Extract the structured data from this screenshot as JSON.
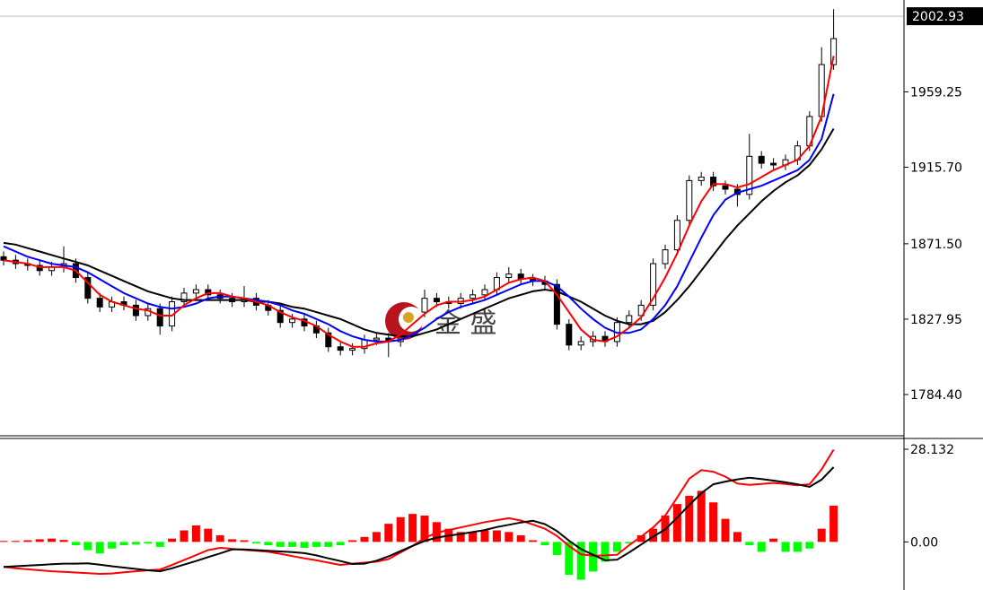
{
  "chart_data": [
    {
      "type": "candlestick",
      "ylim": [
        1761.1,
        2012.3
      ],
      "yticks": [
        {
          "value": 1784.4,
          "label": "1784.40"
        },
        1827.95,
        {
          "value": 1871.5,
          "label": "1871.50"
        },
        {
          "value": 1915.7,
          "label": "1915.70"
        },
        1959.25
      ],
      "current_price": 2002.93,
      "up_color": "#ffffff",
      "down_color": "#000000",
      "watermark": "金 盛",
      "candles": [
        [
          1864,
          1867,
          1859,
          1862
        ],
        [
          1862,
          1865,
          1857,
          1860
        ],
        [
          1860,
          1863,
          1856,
          1859
        ],
        [
          1859,
          1862,
          1853,
          1856
        ],
        [
          1856,
          1861,
          1853,
          1858
        ],
        [
          1858,
          1870,
          1855,
          1860
        ],
        [
          1860,
          1863,
          1849,
          1852
        ],
        [
          1852,
          1855,
          1837,
          1840
        ],
        [
          1840,
          1843,
          1832,
          1835
        ],
        [
          1835,
          1841,
          1832,
          1838
        ],
        [
          1838,
          1841,
          1833,
          1836
        ],
        [
          1836,
          1839,
          1827,
          1830
        ],
        [
          1830,
          1837,
          1827,
          1834
        ],
        [
          1834,
          1837,
          1819,
          1824
        ],
        [
          1824,
          1841,
          1821,
          1838
        ],
        [
          1838,
          1846,
          1835,
          1843
        ],
        [
          1843,
          1848,
          1840,
          1845
        ],
        [
          1845,
          1848,
          1839,
          1842
        ],
        [
          1842,
          1845,
          1837,
          1840
        ],
        [
          1840,
          1843,
          1835,
          1838
        ],
        [
          1838,
          1847,
          1835,
          1840
        ],
        [
          1840,
          1843,
          1833,
          1836
        ],
        [
          1836,
          1839,
          1830,
          1833
        ],
        [
          1833,
          1836,
          1823,
          1826
        ],
        [
          1826,
          1831,
          1823,
          1828
        ],
        [
          1828,
          1831,
          1821,
          1824
        ],
        [
          1824,
          1827,
          1817,
          1820
        ],
        [
          1820,
          1823,
          1809,
          1812
        ],
        [
          1812,
          1815,
          1807,
          1810
        ],
        [
          1810,
          1814,
          1807,
          1811
        ],
        [
          1811,
          1819,
          1808,
          1816
        ],
        [
          1816,
          1820,
          1813,
          1817
        ],
        [
          1817,
          1820,
          1806,
          1815
        ],
        [
          1815,
          1829,
          1812,
          1826
        ],
        [
          1826,
          1835,
          1823,
          1832
        ],
        [
          1832,
          1845,
          1829,
          1840
        ],
        [
          1840,
          1843,
          1835,
          1838
        ],
        [
          1838,
          1841,
          1834,
          1837
        ],
        [
          1837,
          1843,
          1834,
          1840
        ],
        [
          1840,
          1845,
          1837,
          1842
        ],
        [
          1842,
          1848,
          1839,
          1845
        ],
        [
          1845,
          1855,
          1842,
          1852
        ],
        [
          1852,
          1858,
          1849,
          1854
        ],
        [
          1854,
          1857,
          1848,
          1851
        ],
        [
          1851,
          1854,
          1847,
          1850
        ],
        [
          1850,
          1853,
          1845,
          1848
        ],
        [
          1848,
          1851,
          1822,
          1825
        ],
        [
          1825,
          1828,
          1810,
          1813
        ],
        [
          1813,
          1818,
          1810,
          1815
        ],
        [
          1815,
          1821,
          1812,
          1818
        ],
        [
          1818,
          1821,
          1812,
          1815
        ],
        [
          1815,
          1829,
          1812,
          1826
        ],
        [
          1826,
          1833,
          1823,
          1830
        ],
        [
          1830,
          1839,
          1827,
          1836
        ],
        [
          1836,
          1863,
          1833,
          1860
        ],
        [
          1860,
          1871,
          1857,
          1868
        ],
        [
          1868,
          1888,
          1865,
          1885
        ],
        [
          1885,
          1911,
          1882,
          1908
        ],
        [
          1908,
          1913,
          1905,
          1910
        ],
        [
          1910,
          1913,
          1902,
          1905
        ],
        [
          1905,
          1908,
          1900,
          1903
        ],
        [
          1903,
          1906,
          1893,
          1900
        ],
        [
          1900,
          1935,
          1897,
          1922
        ],
        [
          1922,
          1925,
          1915,
          1918
        ],
        [
          1918,
          1921,
          1914,
          1917
        ],
        [
          1917,
          1923,
          1914,
          1920
        ],
        [
          1920,
          1931,
          1917,
          1928
        ],
        [
          1928,
          1948,
          1925,
          1945
        ],
        [
          1945,
          1985,
          1942,
          1975
        ],
        [
          1975,
          2007,
          1972,
          1990
        ]
      ],
      "series": [
        {
          "color": "#000000",
          "values": [
            1872,
            1871,
            1869,
            1867,
            1865,
            1863,
            1861,
            1859,
            1856,
            1853,
            1850,
            1847,
            1844,
            1842,
            1840,
            1839,
            1839,
            1839,
            1839,
            1839,
            1839,
            1838,
            1838,
            1837,
            1835,
            1834,
            1832,
            1830,
            1828,
            1825,
            1822,
            1820,
            1819,
            1818,
            1818,
            1820,
            1822,
            1825,
            1828,
            1831,
            1834,
            1837,
            1840,
            1842,
            1844,
            1845,
            1844,
            1841,
            1838,
            1834,
            1830,
            1827,
            1825,
            1825,
            1827,
            1832,
            1839,
            1847,
            1856,
            1865,
            1874,
            1882,
            1889,
            1896,
            1902,
            1907,
            1911,
            1917,
            1926,
            1938
          ]
        },
        {
          "color": "#0000ff",
          "values": [
            1870,
            1867,
            1864,
            1862,
            1860,
            1859,
            1858,
            1855,
            1851,
            1847,
            1843,
            1840,
            1837,
            1835,
            1834,
            1835,
            1837,
            1840,
            1841,
            1841,
            1840,
            1839,
            1838,
            1836,
            1833,
            1831,
            1828,
            1825,
            1821,
            1818,
            1816,
            1815,
            1815,
            1816,
            1819,
            1823,
            1828,
            1832,
            1835,
            1837,
            1839,
            1842,
            1845,
            1848,
            1850,
            1850,
            1847,
            1841,
            1834,
            1828,
            1823,
            1820,
            1820,
            1822,
            1828,
            1836,
            1847,
            1861,
            1875,
            1888,
            1897,
            1901,
            1903,
            1905,
            1908,
            1911,
            1914,
            1920,
            1932,
            1958
          ]
        },
        {
          "color": "#ff0000",
          "values": [
            1862,
            1861,
            1860,
            1858,
            1858,
            1858,
            1856,
            1849,
            1842,
            1838,
            1836,
            1834,
            1833,
            1830,
            1830,
            1836,
            1840,
            1843,
            1843,
            1841,
            1840,
            1838,
            1836,
            1832,
            1829,
            1827,
            1824,
            1819,
            1815,
            1812,
            1812,
            1814,
            1815,
            1819,
            1825,
            1831,
            1836,
            1838,
            1838,
            1839,
            1841,
            1845,
            1849,
            1851,
            1852,
            1850,
            1842,
            1832,
            1822,
            1816,
            1815,
            1818,
            1823,
            1829,
            1840,
            1852,
            1866,
            1882,
            1896,
            1906,
            1906,
            1904,
            1906,
            1910,
            1914,
            1917,
            1920,
            1928,
            1945,
            1980
          ]
        }
      ]
    },
    {
      "type": "macd",
      "ylim": [
        -14.6,
        31.4
      ],
      "yticks": [
        {
          "value": 0,
          "label": "0.00"
        },
        28.132
      ],
      "positive_color": "#ff0000",
      "negative_color": "#00ff00",
      "histogram": [
        0.3,
        0.3,
        0.5,
        0.8,
        1.0,
        0.6,
        -1.0,
        -2.5,
        -3.5,
        -2.0,
        -1.0,
        -0.8,
        -0.5,
        -1.5,
        1.0,
        3.5,
        5.0,
        4.0,
        2.0,
        0.8,
        0.5,
        -0.5,
        -1.0,
        -1.5,
        -1.5,
        -1.8,
        -1.5,
        -1.5,
        -1.0,
        0.5,
        1.5,
        3.0,
        5.5,
        7.5,
        8.5,
        8.0,
        6.0,
        4.0,
        3.0,
        3.0,
        3.5,
        3.5,
        3.0,
        2.0,
        0.5,
        -1.0,
        -4.0,
        -10.0,
        -11.5,
        -9.0,
        -6.0,
        -3.0,
        -0.5,
        2.0,
        4.0,
        8.0,
        11.5,
        14.0,
        15.5,
        12.0,
        7.0,
        3.0,
        -1.0,
        -3.0,
        1.0,
        -3.0,
        -3.0,
        -2.0,
        4.0,
        11.0
      ],
      "series": [
        {
          "color": "#ff0000",
          "values": [
            -7.6,
            -8,
            -8.3,
            -8.6,
            -8.9,
            -9.1,
            -9.3,
            -9.5,
            -9.7,
            -9.6,
            -9.2,
            -8.9,
            -8.6,
            -8.4,
            -7.0,
            -5.5,
            -4.0,
            -2.5,
            -1.8,
            -2.1,
            -2.4,
            -2.7,
            -3.0,
            -3.6,
            -4.3,
            -5.0,
            -5.6,
            -6.3,
            -7.0,
            -6.6,
            -6.3,
            -6.0,
            -5.2,
            -3.2,
            -1.2,
            1.2,
            2.8,
            3.6,
            4.4,
            5.2,
            6.0,
            6.6,
            7.2,
            6.5,
            5.3,
            4.0,
            1.8,
            -1.2,
            -3.8,
            -4.2,
            -4.1,
            -3.9,
            -1.0,
            1.6,
            4.4,
            8.0,
            13.5,
            19.2,
            21.8,
            21.3,
            19.8,
            17.7,
            17.3,
            17.6,
            17.9,
            17.6,
            17.2,
            17.5,
            22,
            28
          ]
        },
        {
          "color": "#000000",
          "values": [
            -7.6,
            -7.4,
            -7.2,
            -7.0,
            -6.8,
            -6.6,
            -6.6,
            -6.5,
            -6.9,
            -7.4,
            -7.8,
            -8.2,
            -8.6,
            -8.9,
            -8.0,
            -6.9,
            -5.8,
            -4.6,
            -3.5,
            -2.3,
            -2.3,
            -2.5,
            -2.7,
            -2.9,
            -3.1,
            -3.4,
            -4.1,
            -5.0,
            -5.8,
            -6.7,
            -6.6,
            -5.7,
            -4.4,
            -2.8,
            -1.2,
            0.3,
            1.3,
            1.9,
            2.4,
            3.0,
            3.6,
            4.5,
            5.2,
            5.9,
            6.4,
            5.4,
            3.3,
            0.4,
            -2.2,
            -3.9,
            -5.6,
            -5.4,
            -3.2,
            -0.8,
            1.6,
            3.8,
            7.4,
            11.2,
            14.8,
            17.5,
            18.3,
            19.0,
            19.5,
            19.1,
            18.6,
            18.1,
            17.5,
            16.7,
            18.9,
            22.7
          ]
        }
      ]
    }
  ]
}
